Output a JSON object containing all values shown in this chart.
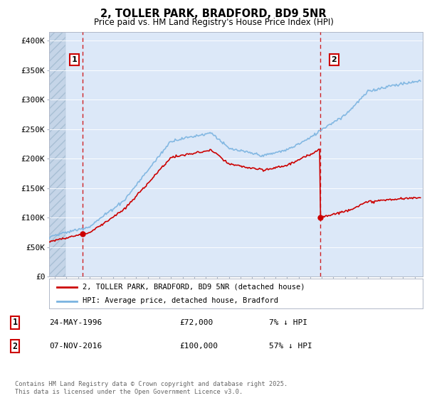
{
  "title": "2, TOLLER PARK, BRADFORD, BD9 5NR",
  "subtitle": "Price paid vs. HM Land Registry's House Price Index (HPI)",
  "ylabel_ticks": [
    "£0",
    "£50K",
    "£100K",
    "£150K",
    "£200K",
    "£250K",
    "£300K",
    "£350K",
    "£400K"
  ],
  "ytick_values": [
    0,
    50000,
    100000,
    150000,
    200000,
    250000,
    300000,
    350000,
    400000
  ],
  "ylim": [
    0,
    415000
  ],
  "xlim_start": 1993.5,
  "xlim_end": 2025.7,
  "hpi_color": "#7ab3e0",
  "sale_color": "#cc0000",
  "sale1_date": 1996.39,
  "sale1_price": 72000,
  "sale2_date": 2016.85,
  "sale2_price": 100000,
  "legend_label1": "2, TOLLER PARK, BRADFORD, BD9 5NR (detached house)",
  "legend_label2": "HPI: Average price, detached house, Bradford",
  "table_row1_num": "1",
  "table_row1_date": "24-MAY-1996",
  "table_row1_price": "£72,000",
  "table_row1_hpi": "7% ↓ HPI",
  "table_row2_num": "2",
  "table_row2_date": "07-NOV-2016",
  "table_row2_price": "£100,000",
  "table_row2_hpi": "57% ↓ HPI",
  "footer": "Contains HM Land Registry data © Crown copyright and database right 2025.\nThis data is licensed under the Open Government Licence v3.0.",
  "plot_bg": "#dce8f8",
  "hatch_bg": "#c8d8ec"
}
